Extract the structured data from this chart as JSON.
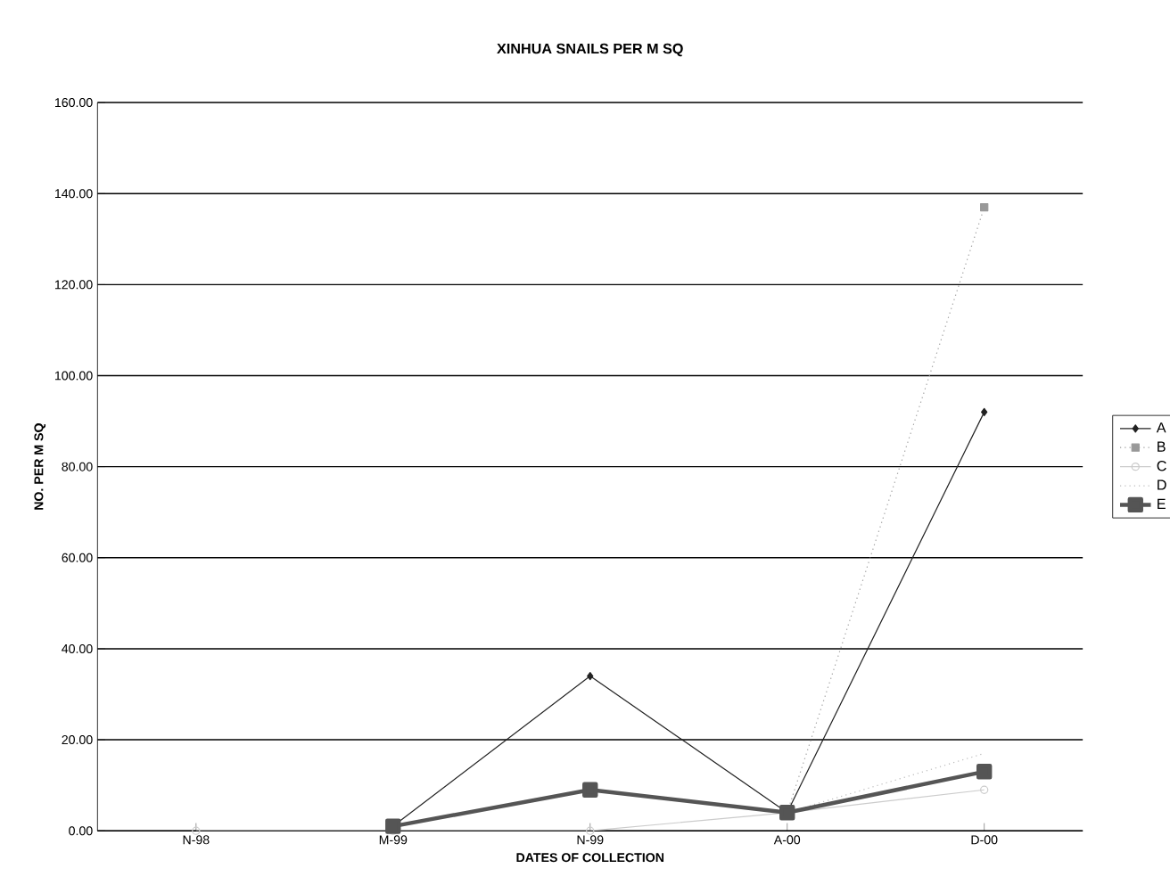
{
  "chart_data": {
    "type": "line",
    "title": "XINHUA SNAILS PER M SQ",
    "xlabel": "DATES OF COLLECTION",
    "ylabel": "NO. PER M SQ",
    "categories": [
      "N-98",
      "M-99",
      "N-99",
      "A-00",
      "D-00"
    ],
    "series": [
      {
        "name": "A",
        "color": "#222222",
        "marker": "diamond",
        "line_style": "solid",
        "values": [
          null,
          1,
          34,
          4,
          92
        ]
      },
      {
        "name": "B",
        "color": "#999999",
        "marker": "square",
        "line_style": "dotted",
        "values": [
          null,
          null,
          null,
          4,
          137
        ]
      },
      {
        "name": "C",
        "color": "#cccccc",
        "marker": "circle",
        "line_style": "solid",
        "values": [
          0,
          0,
          0,
          4,
          9
        ]
      },
      {
        "name": "D",
        "color": "#bbbbbb",
        "marker": "none",
        "line_style": "dotted",
        "values": [
          null,
          null,
          null,
          4,
          17
        ]
      },
      {
        "name": "E",
        "color": "#555555",
        "marker": "square",
        "line_style": "solid",
        "values": [
          null,
          1,
          9,
          4,
          13
        ]
      }
    ],
    "ylim": [
      0,
      160
    ],
    "yticks": [
      {
        "value": 0,
        "label": "0.00"
      },
      {
        "value": 20,
        "label": "20.00"
      },
      {
        "value": 40,
        "label": "40.00"
      },
      {
        "value": 60,
        "label": "60.00"
      },
      {
        "value": 80,
        "label": "80.00"
      },
      {
        "value": 100,
        "label": "100.00"
      },
      {
        "value": 120,
        "label": "120.00"
      },
      {
        "value": 140,
        "label": "140.00"
      },
      {
        "value": 160,
        "label": "160.00"
      }
    ],
    "grid": "y",
    "legend": "right"
  }
}
